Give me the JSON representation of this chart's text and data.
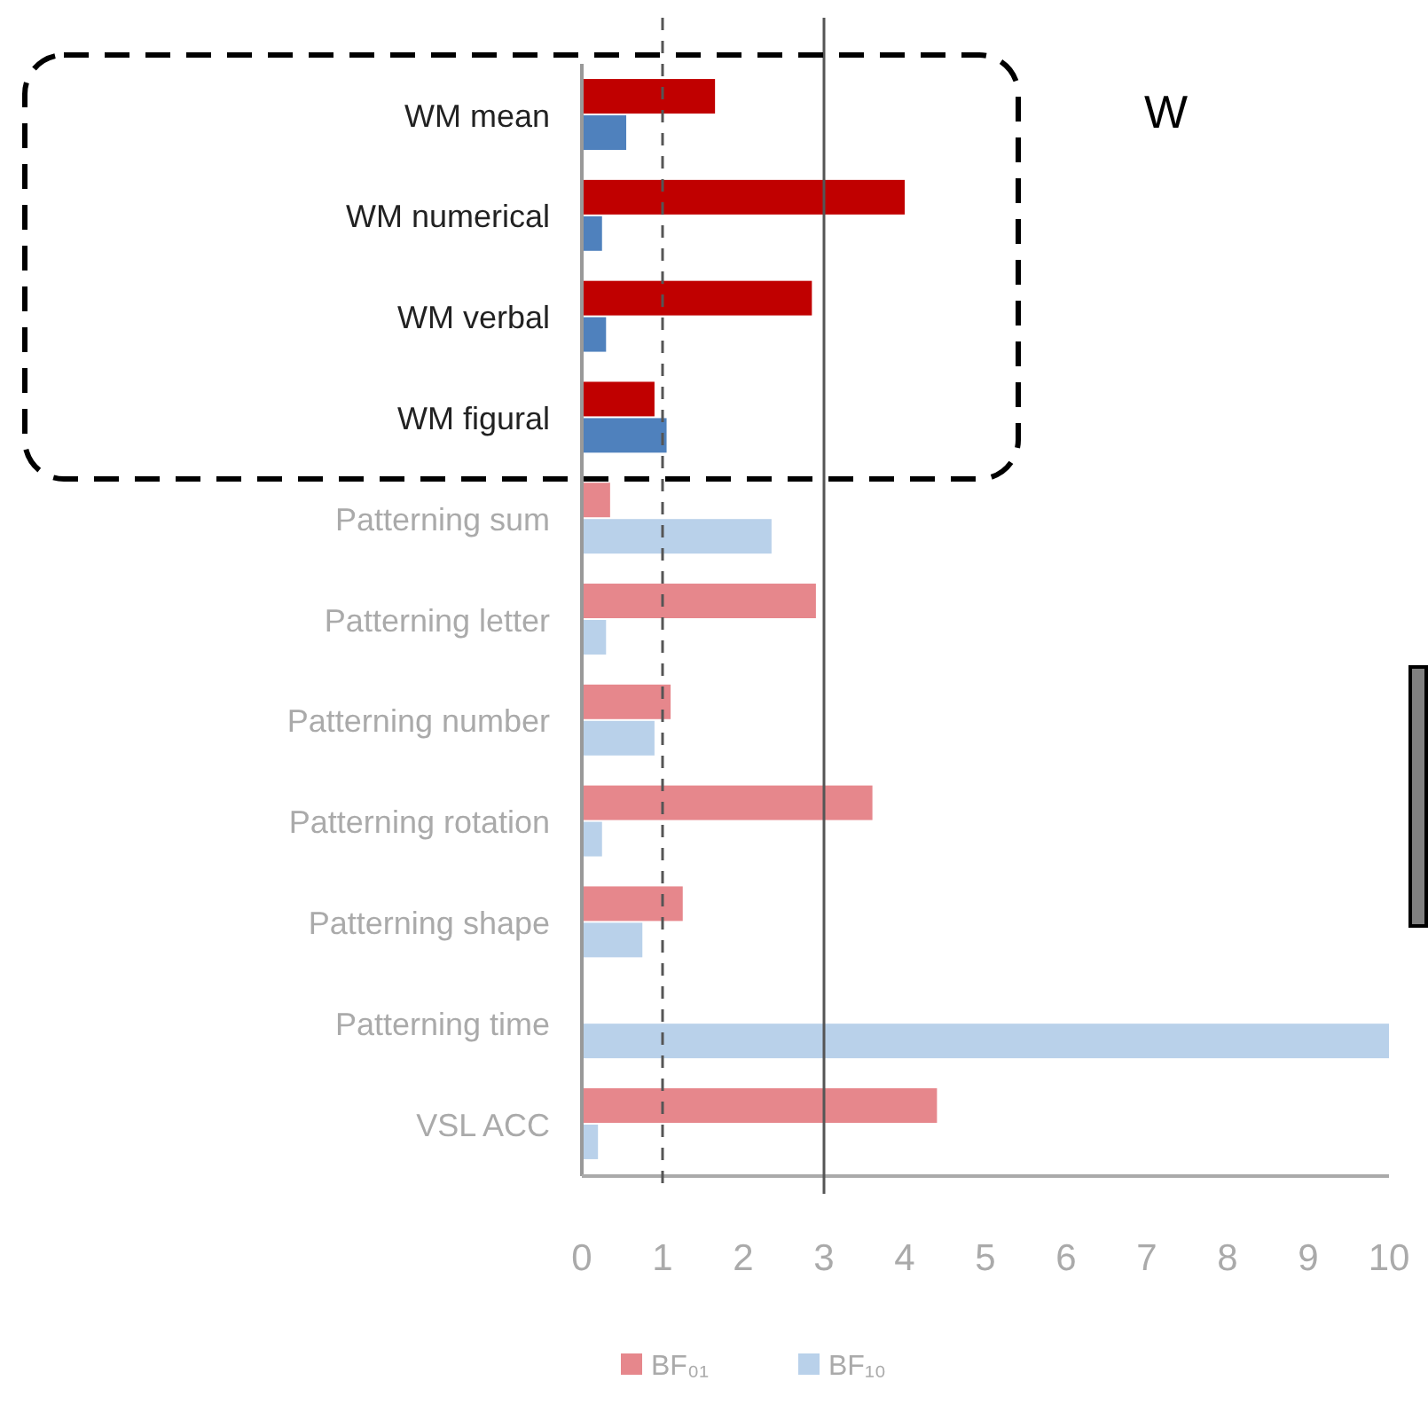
{
  "chart_data": {
    "type": "bar",
    "orientation": "horizontal",
    "title": "W",
    "categories": [
      "WM mean",
      "WM numerical",
      "WM verbal",
      "WM figural",
      "Patterning sum",
      "Patterning letter",
      "Patterning number",
      "Patterning rotation",
      "Patterning shape",
      "Patterning time",
      "VSL ACC"
    ],
    "series": [
      {
        "name": "BF₀₁",
        "color": "#e6878c",
        "colors": [
          "#c00000",
          "#c00000",
          "#c00000",
          "#c00000",
          "#e6878c",
          "#e6878c",
          "#e6878c",
          "#e6878c",
          "#e6878c",
          "#e6878c",
          "#e6878c"
        ],
        "values": [
          1.65,
          4.0,
          2.85,
          0.9,
          0.35,
          2.9,
          1.1,
          3.6,
          1.25,
          null,
          4.4
        ]
      },
      {
        "name": "BF₁₀",
        "color": "#b9d1ea",
        "colors": [
          "#4f81bd",
          "#4f81bd",
          "#4f81bd",
          "#4f81bd",
          "#b9d1ea",
          "#b9d1ea",
          "#b9d1ea",
          "#b9d1ea",
          "#b9d1ea",
          "#b9d1ea",
          "#b9d1ea"
        ],
        "values": [
          0.55,
          0.25,
          0.3,
          1.05,
          2.35,
          0.3,
          0.9,
          0.25,
          0.75,
          10.0,
          0.2
        ]
      }
    ],
    "xlim": [
      0,
      10
    ],
    "xticks": [
      0,
      1,
      2,
      3,
      4,
      5,
      6,
      7,
      8,
      9,
      10
    ],
    "ref_lines": [
      {
        "axis": "x",
        "value": 1,
        "label": null,
        "line_style": "dashed",
        "color": "#555555"
      },
      {
        "axis": "x",
        "value": 3,
        "label": null,
        "line_style": "solid",
        "color": "#555555"
      }
    ],
    "grid": false,
    "legend": "bottom"
  }
}
